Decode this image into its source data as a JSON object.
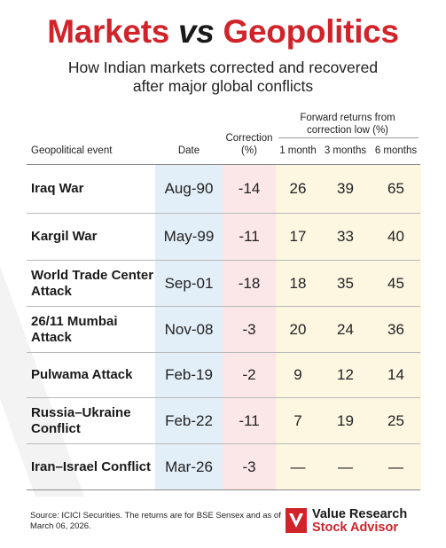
{
  "title": {
    "part1": "Markets",
    "part2": "vs",
    "part3": "Geopolitics"
  },
  "subtitle": "How Indian markets corrected and recovered after major global conflicts",
  "headers": {
    "event": "Geopolitical event",
    "date": "Date",
    "correction": "Correction (%)",
    "forward": "Forward returns from correction low (%)",
    "m1": "1 month",
    "m3": "3 months",
    "m6": "6 months"
  },
  "rows": [
    {
      "event": "Iraq War",
      "date": "Aug-90",
      "correction": "-14",
      "m1": "26",
      "m3": "39",
      "m6": "65"
    },
    {
      "event": "Kargil War",
      "date": "May-99",
      "correction": "-11",
      "m1": "17",
      "m3": "33",
      "m6": "40"
    },
    {
      "event": "World Trade Center Attack",
      "date": "Sep-01",
      "correction": "-18",
      "m1": "18",
      "m3": "35",
      "m6": "45"
    },
    {
      "event": "26/11 Mumbai Attack",
      "date": "Nov-08",
      "correction": "-3",
      "m1": "20",
      "m3": "24",
      "m6": "36"
    },
    {
      "event": "Pulwama Attack",
      "date": "Feb-19",
      "correction": "-2",
      "m1": "9",
      "m3": "12",
      "m6": "14"
    },
    {
      "event": "Russia–Ukraine Conflict",
      "date": "Feb-22",
      "correction": "-11",
      "m1": "7",
      "m3": "19",
      "m6": "25"
    },
    {
      "event": "Iran–Israel Conflict",
      "date": "Mar-26",
      "correction": "-3",
      "m1": "—",
      "m3": "—",
      "m6": "—"
    }
  ],
  "source": "Source: ICICI Securities. The returns are for BSE Sensex and as of March 06, 2026.",
  "logo": {
    "line1": "Value Research",
    "line2": "Stock Advisor"
  },
  "colors": {
    "brand_red": "#d1232a",
    "date_col": "#e3eff8",
    "correction_col": "#fbe6e8",
    "returns_col": "#fdf6e1"
  }
}
